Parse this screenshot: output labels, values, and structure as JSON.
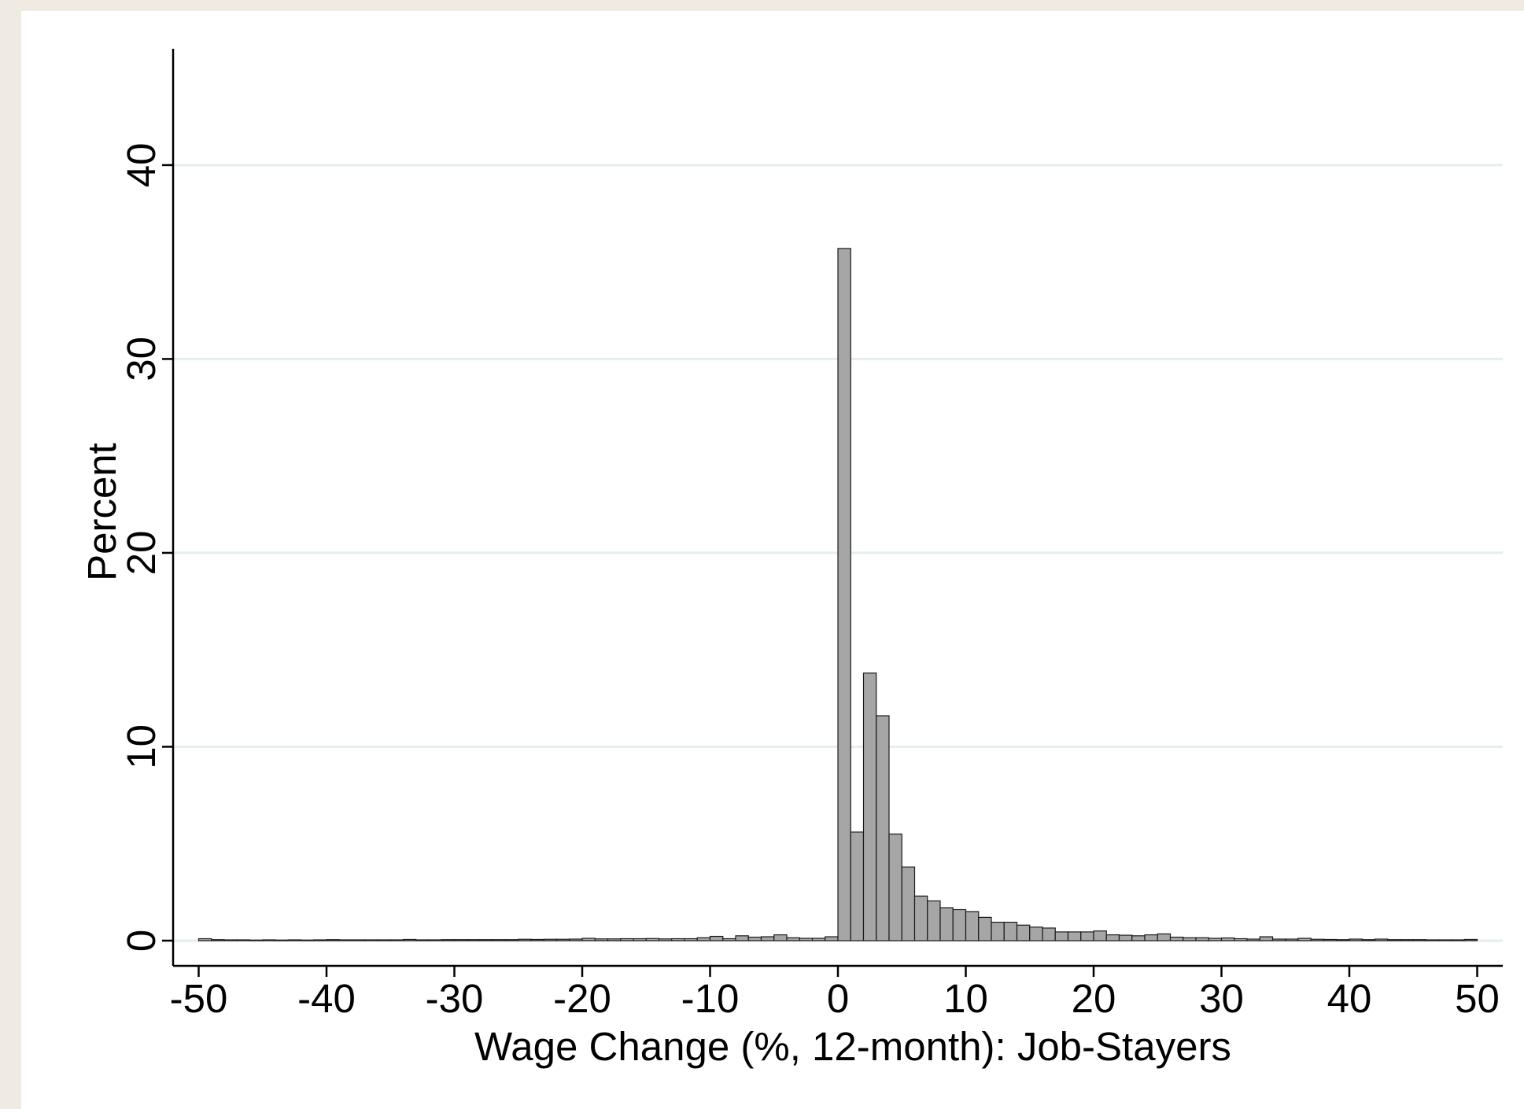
{
  "chart_data": {
    "type": "bar",
    "xlabel": "Wage Change (%, 12-month): Job-Stayers",
    "ylabel": "Percent",
    "xlim": [
      -52,
      52
    ],
    "ylim": [
      -1.3,
      46
    ],
    "x_ticks": [
      -50,
      -40,
      -30,
      -20,
      -10,
      0,
      10,
      20,
      30,
      40,
      50
    ],
    "y_ticks": [
      0,
      10,
      20,
      30,
      40
    ],
    "grid": "horizontal",
    "bin_width": 1,
    "bins": [
      {
        "x0": -50,
        "value": 0.1
      },
      {
        "x0": -49,
        "value": 0.05
      },
      {
        "x0": -48,
        "value": 0.04
      },
      {
        "x0": -47,
        "value": 0.04
      },
      {
        "x0": -46,
        "value": 0.03
      },
      {
        "x0": -45,
        "value": 0.04
      },
      {
        "x0": -44,
        "value": 0.03
      },
      {
        "x0": -43,
        "value": 0.04
      },
      {
        "x0": -42,
        "value": 0.03
      },
      {
        "x0": -41,
        "value": 0.04
      },
      {
        "x0": -40,
        "value": 0.05
      },
      {
        "x0": -39,
        "value": 0.04
      },
      {
        "x0": -38,
        "value": 0.04
      },
      {
        "x0": -37,
        "value": 0.04
      },
      {
        "x0": -36,
        "value": 0.04
      },
      {
        "x0": -35,
        "value": 0.04
      },
      {
        "x0": -34,
        "value": 0.06
      },
      {
        "x0": -33,
        "value": 0.04
      },
      {
        "x0": -32,
        "value": 0.04
      },
      {
        "x0": -31,
        "value": 0.05
      },
      {
        "x0": -30,
        "value": 0.05
      },
      {
        "x0": -29,
        "value": 0.05
      },
      {
        "x0": -28,
        "value": 0.05
      },
      {
        "x0": -27,
        "value": 0.05
      },
      {
        "x0": -26,
        "value": 0.05
      },
      {
        "x0": -25,
        "value": 0.07
      },
      {
        "x0": -24,
        "value": 0.06
      },
      {
        "x0": -23,
        "value": 0.07
      },
      {
        "x0": -22,
        "value": 0.07
      },
      {
        "x0": -21,
        "value": 0.08
      },
      {
        "x0": -20,
        "value": 0.12
      },
      {
        "x0": -19,
        "value": 0.09
      },
      {
        "x0": -18,
        "value": 0.09
      },
      {
        "x0": -17,
        "value": 0.1
      },
      {
        "x0": -16,
        "value": 0.1
      },
      {
        "x0": -15,
        "value": 0.11
      },
      {
        "x0": -14,
        "value": 0.09
      },
      {
        "x0": -13,
        "value": 0.1
      },
      {
        "x0": -12,
        "value": 0.1
      },
      {
        "x0": -11,
        "value": 0.15
      },
      {
        "x0": -10,
        "value": 0.22
      },
      {
        "x0": -9,
        "value": 0.1
      },
      {
        "x0": -8,
        "value": 0.25
      },
      {
        "x0": -7,
        "value": 0.18
      },
      {
        "x0": -6,
        "value": 0.2
      },
      {
        "x0": -5,
        "value": 0.3
      },
      {
        "x0": -4,
        "value": 0.15
      },
      {
        "x0": -3,
        "value": 0.12
      },
      {
        "x0": -2,
        "value": 0.12
      },
      {
        "x0": -1,
        "value": 0.2
      },
      {
        "x0": 0,
        "value": 35.7
      },
      {
        "x0": 1,
        "value": 5.6
      },
      {
        "x0": 2,
        "value": 13.8
      },
      {
        "x0": 3,
        "value": 11.6
      },
      {
        "x0": 4,
        "value": 5.5
      },
      {
        "x0": 5,
        "value": 3.8
      },
      {
        "x0": 6,
        "value": 2.3
      },
      {
        "x0": 7,
        "value": 2.05
      },
      {
        "x0": 8,
        "value": 1.7
      },
      {
        "x0": 9,
        "value": 1.6
      },
      {
        "x0": 10,
        "value": 1.5
      },
      {
        "x0": 11,
        "value": 1.2
      },
      {
        "x0": 12,
        "value": 0.95
      },
      {
        "x0": 13,
        "value": 0.95
      },
      {
        "x0": 14,
        "value": 0.8
      },
      {
        "x0": 15,
        "value": 0.7
      },
      {
        "x0": 16,
        "value": 0.65
      },
      {
        "x0": 17,
        "value": 0.45
      },
      {
        "x0": 18,
        "value": 0.45
      },
      {
        "x0": 19,
        "value": 0.45
      },
      {
        "x0": 20,
        "value": 0.5
      },
      {
        "x0": 21,
        "value": 0.3
      },
      {
        "x0": 22,
        "value": 0.28
      },
      {
        "x0": 23,
        "value": 0.25
      },
      {
        "x0": 24,
        "value": 0.3
      },
      {
        "x0": 25,
        "value": 0.35
      },
      {
        "x0": 26,
        "value": 0.18
      },
      {
        "x0": 27,
        "value": 0.15
      },
      {
        "x0": 28,
        "value": 0.15
      },
      {
        "x0": 29,
        "value": 0.12
      },
      {
        "x0": 30,
        "value": 0.14
      },
      {
        "x0": 31,
        "value": 0.1
      },
      {
        "x0": 32,
        "value": 0.08
      },
      {
        "x0": 33,
        "value": 0.2
      },
      {
        "x0": 34,
        "value": 0.08
      },
      {
        "x0": 35,
        "value": 0.08
      },
      {
        "x0": 36,
        "value": 0.12
      },
      {
        "x0": 37,
        "value": 0.07
      },
      {
        "x0": 38,
        "value": 0.06
      },
      {
        "x0": 39,
        "value": 0.05
      },
      {
        "x0": 40,
        "value": 0.08
      },
      {
        "x0": 41,
        "value": 0.05
      },
      {
        "x0": 42,
        "value": 0.08
      },
      {
        "x0": 43,
        "value": 0.05
      },
      {
        "x0": 44,
        "value": 0.05
      },
      {
        "x0": 45,
        "value": 0.05
      },
      {
        "x0": 46,
        "value": 0.04
      },
      {
        "x0": 47,
        "value": 0.04
      },
      {
        "x0": 48,
        "value": 0.04
      },
      {
        "x0": 49,
        "value": 0.06
      }
    ]
  },
  "colors": {
    "bar_fill": "#a6a6a6",
    "bar_stroke": "#1a1a1a",
    "grid": "#e5eeee",
    "axis": "#000000",
    "frame_background": "#efebe2",
    "plot_background": "#ffffff"
  }
}
